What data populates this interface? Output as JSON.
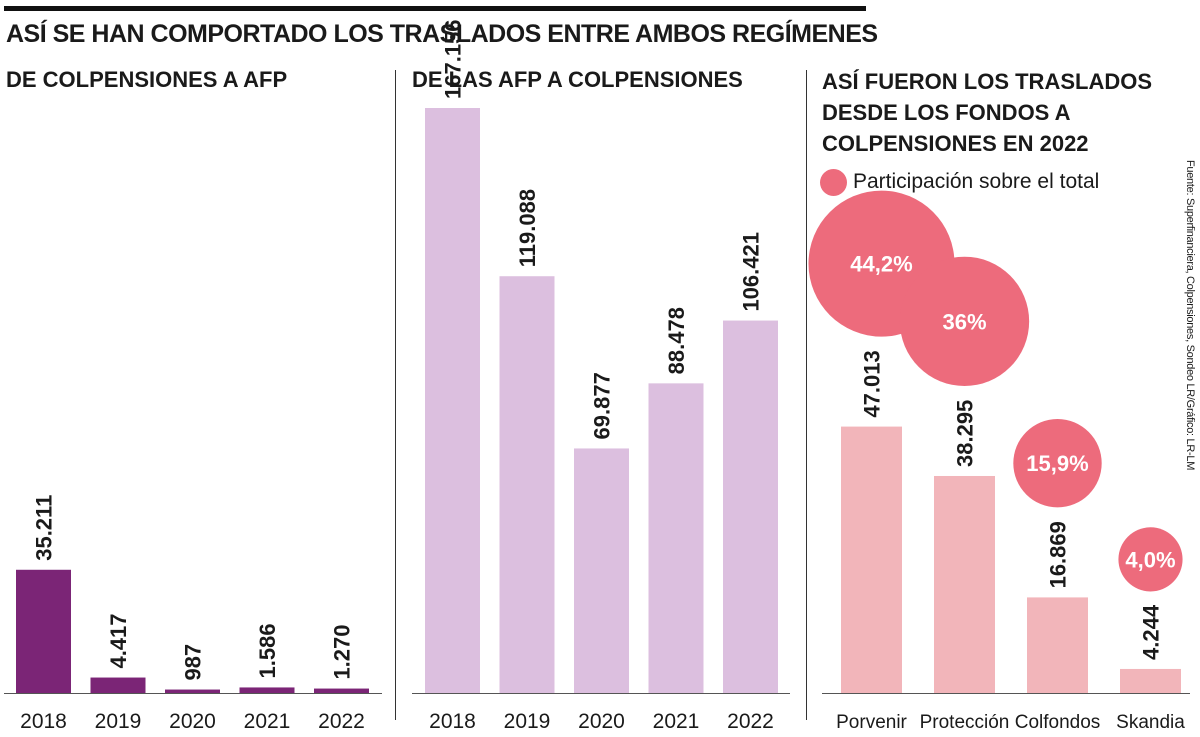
{
  "title": "ASÍ SE HAN COMPORTADO LOS TRASLADOS ENTRE AMBOS REGÍMENES",
  "source": "Fuente: Superfinanciera, Colpensiones, Sondeo LR/Gráfico: LR-LM",
  "legend": {
    "label": "Participación sobre el total",
    "color": "#ed6b7c"
  },
  "colors": {
    "dark_purple": "#7b2576",
    "light_purple": "#dcbfdf",
    "light_pink": "#f2b5ba",
    "bubble": "#ed6b7c",
    "axis": "#555555"
  },
  "chart_data": [
    {
      "type": "bar",
      "title": "DE COLPENSIONES A AFP",
      "categories": [
        "2018",
        "2019",
        "2020",
        "2021",
        "2022"
      ],
      "values": [
        35211,
        4417,
        987,
        1586,
        1270
      ],
      "value_labels": [
        "35.211",
        "4.417",
        "987",
        "1.586",
        "1.270"
      ],
      "ylim": [
        0,
        167156
      ]
    },
    {
      "type": "bar",
      "title": "DE LAS AFP A COLPENSIONES",
      "categories": [
        "2018",
        "2019",
        "2020",
        "2021",
        "2022"
      ],
      "values": [
        167156,
        119088,
        69877,
        88478,
        106421
      ],
      "value_labels": [
        "167.156",
        "119.088",
        "69.877",
        "88.478",
        "106.421"
      ],
      "ylim": [
        0,
        167156
      ]
    },
    {
      "type": "bar",
      "title_lines": [
        "ASÍ FUERON LOS TRASLADOS",
        "DESDE LOS FONDOS A",
        "COLPENSIONES EN 2022"
      ],
      "categories": [
        "Porvenir",
        "Protección",
        "Colfondos",
        "Skandia"
      ],
      "values": [
        47013,
        38295,
        16869,
        4244
      ],
      "value_labels": [
        "47.013",
        "38.295",
        "16.869",
        "4.244"
      ],
      "shares": [
        44.2,
        36.0,
        15.9,
        4.0
      ],
      "share_labels": [
        "44,2%",
        "36%",
        "15,9%",
        "4,0%"
      ],
      "ylim": [
        0,
        75000
      ]
    }
  ]
}
